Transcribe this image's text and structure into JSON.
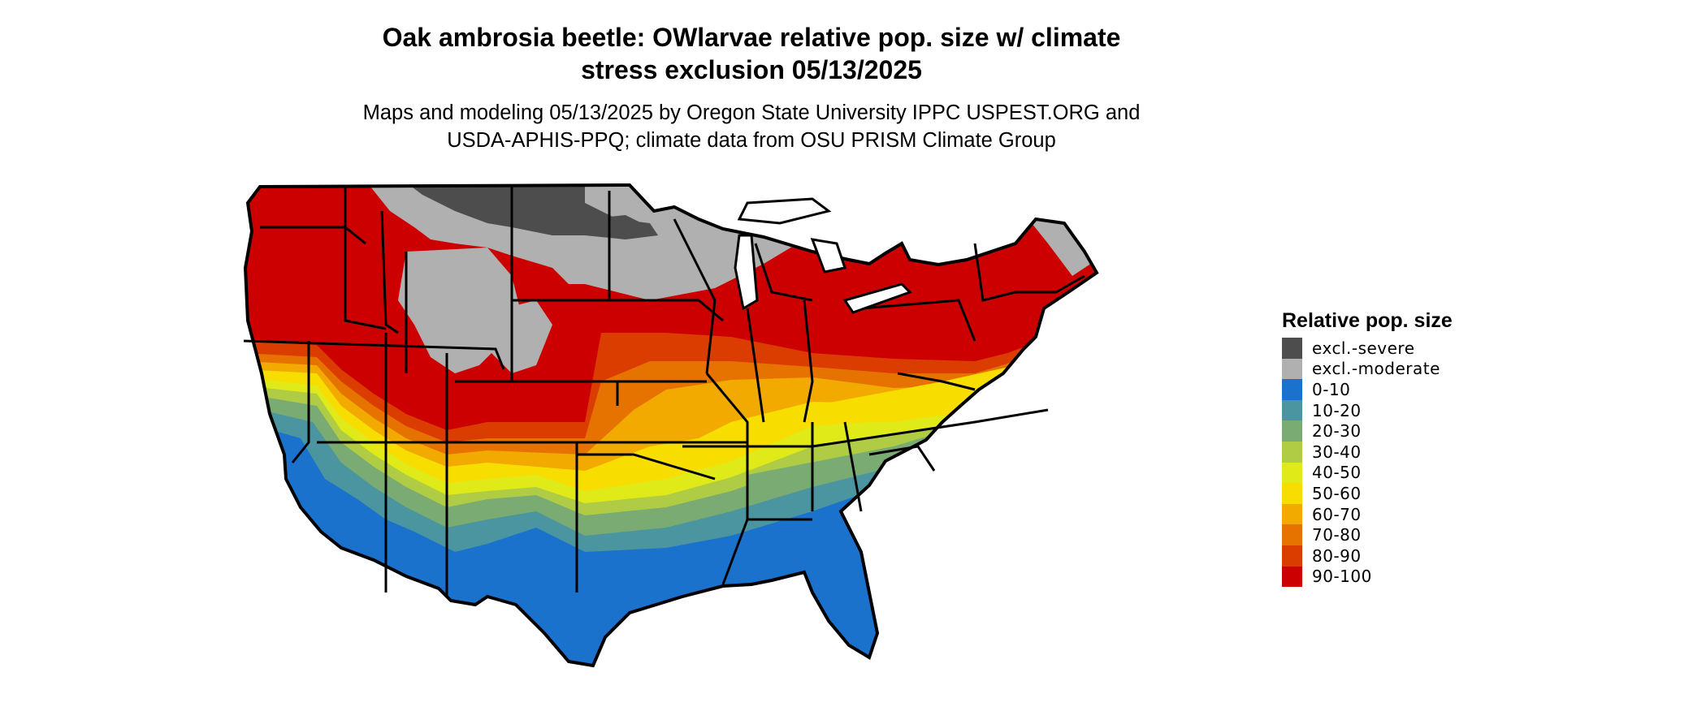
{
  "title_lines": [
    "Oak ambrosia beetle: OWlarvae relative pop. size w/ climate",
    "stress exclusion 05/13/2025"
  ],
  "subtitle_lines": [
    "Maps and modeling 05/13/2025 by Oregon State University IPPC USPEST.ORG and",
    "USDA-APHIS-PPQ; climate data from OSU PRISM Climate Group"
  ],
  "legend": {
    "title": "Relative pop. size",
    "items": [
      {
        "label": "excl.-severe",
        "color": "#4d4d4d"
      },
      {
        "label": "excl.-moderate",
        "color": "#b0b0b0"
      },
      {
        "label": "0-10",
        "color": "#1b72cc"
      },
      {
        "label": "10-20",
        "color": "#4a95a0"
      },
      {
        "label": "20-30",
        "color": "#7aab72"
      },
      {
        "label": "30-40",
        "color": "#b0cc44"
      },
      {
        "label": "40-50",
        "color": "#e0ea18"
      },
      {
        "label": "50-60",
        "color": "#f7de00"
      },
      {
        "label": "60-70",
        "color": "#f2a900"
      },
      {
        "label": "70-80",
        "color": "#e67200"
      },
      {
        "label": "80-90",
        "color": "#db3c00"
      },
      {
        "label": "90-100",
        "color": "#cc0000"
      }
    ]
  },
  "map": {
    "border_color": "#000000",
    "state_border_color": "#000000"
  }
}
